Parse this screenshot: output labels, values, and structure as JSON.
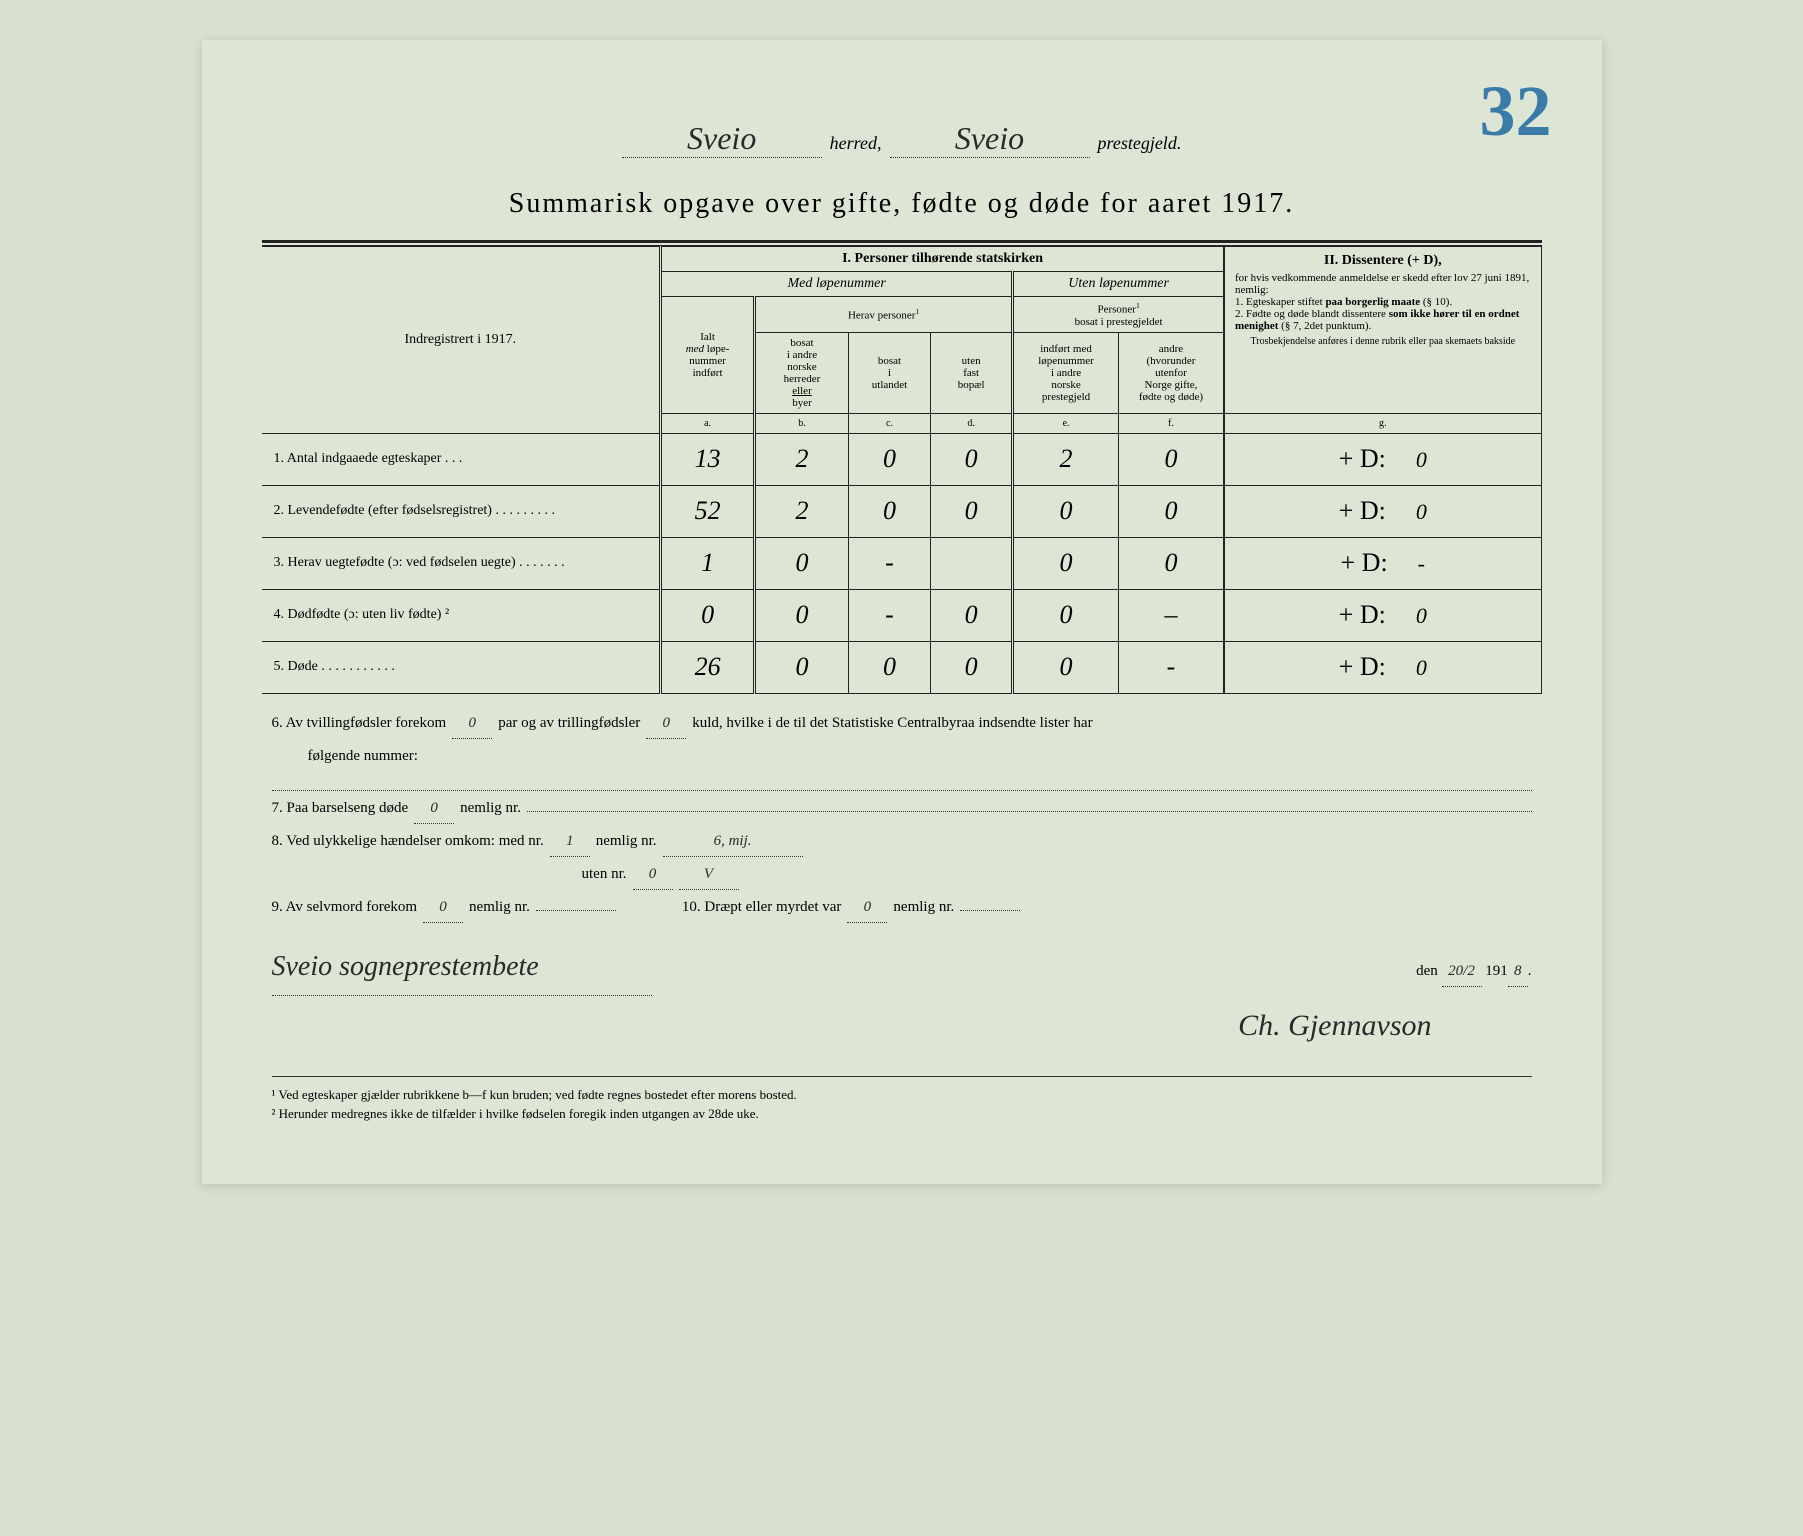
{
  "page_number_blue": "32",
  "header": {
    "herred_value": "Sveio",
    "herred_label": "herred,",
    "prestegjeld_value": "Sveio",
    "prestegjeld_label": "prestegjeld."
  },
  "title": "Summarisk opgave over gifte, fødte og døde for aaret 1917.",
  "table": {
    "section1_title": "I.  Personer tilhørende statskirken",
    "section2_title": "II.  Dissentere (+ D),",
    "med_lope": "Med løpenummer",
    "uten_lope": "Uten løpenummer",
    "ialt": "Ialt med løpe-nummer indført",
    "herav_personer": "Herav personer",
    "personer_bosat": "Personer ¹ bosat i prestegjeldet",
    "left_col_header": "Indregistrert i 1917.",
    "col_b": "bosat i andre norske herreder eller byer",
    "col_c": "bosat i utlandet",
    "col_d": "uten fast bopæl",
    "col_e": "indført med løpenummer i andre norske prestegjeld",
    "col_f": "andre (hvorunder utenfor Norge gifte, fødte og døde)",
    "col_g_text": "for hvis vedkommende anmeldelse er skedd efter lov 27 juni 1891, nemlig: 1. Egteskaper stiftet paa borgerlig maate (§ 10). 2. Fødte og døde blandt dissentere som ikke hører til en ordnet menighet (§ 7, 2det punktum).",
    "col_g_sub": "Trosbekjendelse anføres i denne rubrik eller paa skemaets bakside",
    "col_letters": [
      "a.",
      "b.",
      "c.",
      "d.",
      "e.",
      "f.",
      "g."
    ],
    "rows": [
      {
        "num": "1.",
        "label": "Antal indgaaede egteskaper . . .",
        "a": "13",
        "b": "2",
        "c": "0",
        "d": "0",
        "e": "2",
        "f": "0",
        "g": "0"
      },
      {
        "num": "2.",
        "label": "Levendefødte (efter fødselsregistret) . . . . . . . . .",
        "a": "52",
        "b": "2",
        "c": "0",
        "d": "0",
        "e": "0",
        "f": "0",
        "g": "0"
      },
      {
        "num": "3.",
        "label": "Herav uegtefødte (ɔ: ved fødselen uegte) . . . . . . .",
        "a": "1",
        "b": "0",
        "c": "-",
        "d": "",
        "e": "0",
        "f": "0",
        "g": "-"
      },
      {
        "num": "4.",
        "label": "Dødfødte (ɔ: uten liv fødte) ²",
        "a": "0",
        "b": "0",
        "c": "-",
        "d": "0",
        "e": "0",
        "f": "–",
        "g": "0"
      },
      {
        "num": "5.",
        "label": "Døde . . . . . . . . . . .",
        "a": "26",
        "b": "0",
        "c": "0",
        "d": "0",
        "e": "0",
        "f": "-",
        "g": "0"
      }
    ]
  },
  "line6": {
    "prefix": "6.  Av tvillingfødsler forekom",
    "tvilling": "0",
    "mid": "par og av trillingfødsler",
    "trilling": "0",
    "suffix": "kuld, hvilke i de til det Statistiske Centralbyraa indsendte lister har",
    "next": "følgende nummer:"
  },
  "line7": {
    "prefix": "7.  Paa barselseng døde",
    "val": "0",
    "suffix": "nemlig nr."
  },
  "line8": {
    "prefix": "8.  Ved ulykkelige hændelser omkom:  med nr.",
    "med_nr": "1",
    "nemlig": "nemlig nr.",
    "nemlig_val": "6, mij.",
    "uten_label": "uten nr.",
    "uten_val": "0",
    "v_mark": "V"
  },
  "line9": {
    "prefix": "9.  Av selvmord forekom",
    "val": "0",
    "suffix": "nemlig nr."
  },
  "line10": {
    "prefix": "10.  Dræpt eller myrdet var",
    "val": "0",
    "suffix": "nemlig nr."
  },
  "date_line": {
    "den": "den",
    "day": "20/2",
    "year_prefix": "191",
    "year": "8"
  },
  "signature_left": "Sveio sogneprestembete",
  "signature_right": "Ch. Gjennavson",
  "footnotes": {
    "f1": "¹ Ved egteskaper gjælder rubrikkene b—f kun bruden; ved fødte regnes bostedet efter morens bosted.",
    "f2": "² Herunder medregnes ikke de tilfælder i hvilke fødselen foregik inden utgangen av 28de uke."
  },
  "colors": {
    "paper": "#dde5d5",
    "ink": "#222222",
    "blue": "#3a7ba8"
  }
}
